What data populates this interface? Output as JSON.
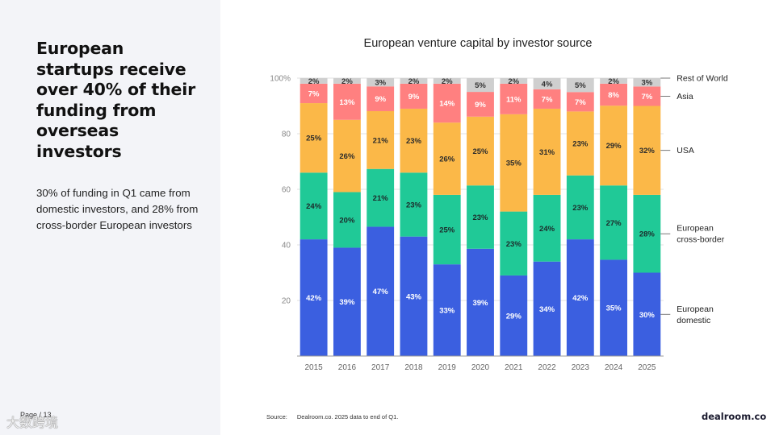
{
  "slide": {
    "headline": "European startups receive over 40% of their funding from overseas investors",
    "subtext": "30% of funding in Q1 came from domestic investors, and 28% from cross-border European investors",
    "page_label": "Page / 13",
    "watermark": "大数跨境",
    "source_label": "Source:",
    "source_text": "Dealroom.co. 2025 data to end of Q1.",
    "brand": "dealroom.co"
  },
  "chart_data": {
    "type": "bar",
    "stacked": true,
    "title": "European venture capital by investor source",
    "categories": [
      "2015",
      "2016",
      "2017",
      "2018",
      "2019",
      "2020",
      "2021",
      "2022",
      "2023",
      "2024",
      "2025"
    ],
    "series": [
      {
        "name": "European domestic",
        "label_lines": [
          "European",
          "domestic"
        ],
        "color": "#3b5fe0",
        "label_color": "#ffffff",
        "values": [
          42,
          39,
          47,
          43,
          33,
          39,
          29,
          34,
          42,
          35,
          30
        ]
      },
      {
        "name": "European cross-border",
        "label_lines": [
          "European",
          "cross-border"
        ],
        "color": "#20c997",
        "label_color": "#1c2b2b",
        "values": [
          24,
          20,
          21,
          23,
          25,
          23,
          23,
          24,
          23,
          27,
          28
        ]
      },
      {
        "name": "USA",
        "label_lines": [
          "USA"
        ],
        "color": "#fbb848",
        "label_color": "#2b2b2b",
        "values": [
          25,
          26,
          21,
          23,
          26,
          25,
          35,
          31,
          23,
          29,
          32
        ]
      },
      {
        "name": "Asia",
        "label_lines": [
          "Asia"
        ],
        "color": "#ff8080",
        "label_color": "#ffffff",
        "values": [
          7,
          13,
          9,
          9,
          14,
          9,
          11,
          7,
          7,
          8,
          7
        ]
      },
      {
        "name": "Rest of World",
        "label_lines": [
          "Rest of World"
        ],
        "color": "#cfcfcf",
        "label_color": "#333333",
        "values": [
          2,
          2,
          3,
          2,
          2,
          5,
          2,
          4,
          5,
          2,
          3
        ]
      }
    ],
    "ylim": [
      0,
      100
    ],
    "yticks": [
      20,
      40,
      60,
      80,
      100
    ],
    "ytick_labels": [
      "20",
      "40",
      "60",
      "80",
      "100%"
    ],
    "value_suffix": "%",
    "legend": "right",
    "grid": true
  }
}
